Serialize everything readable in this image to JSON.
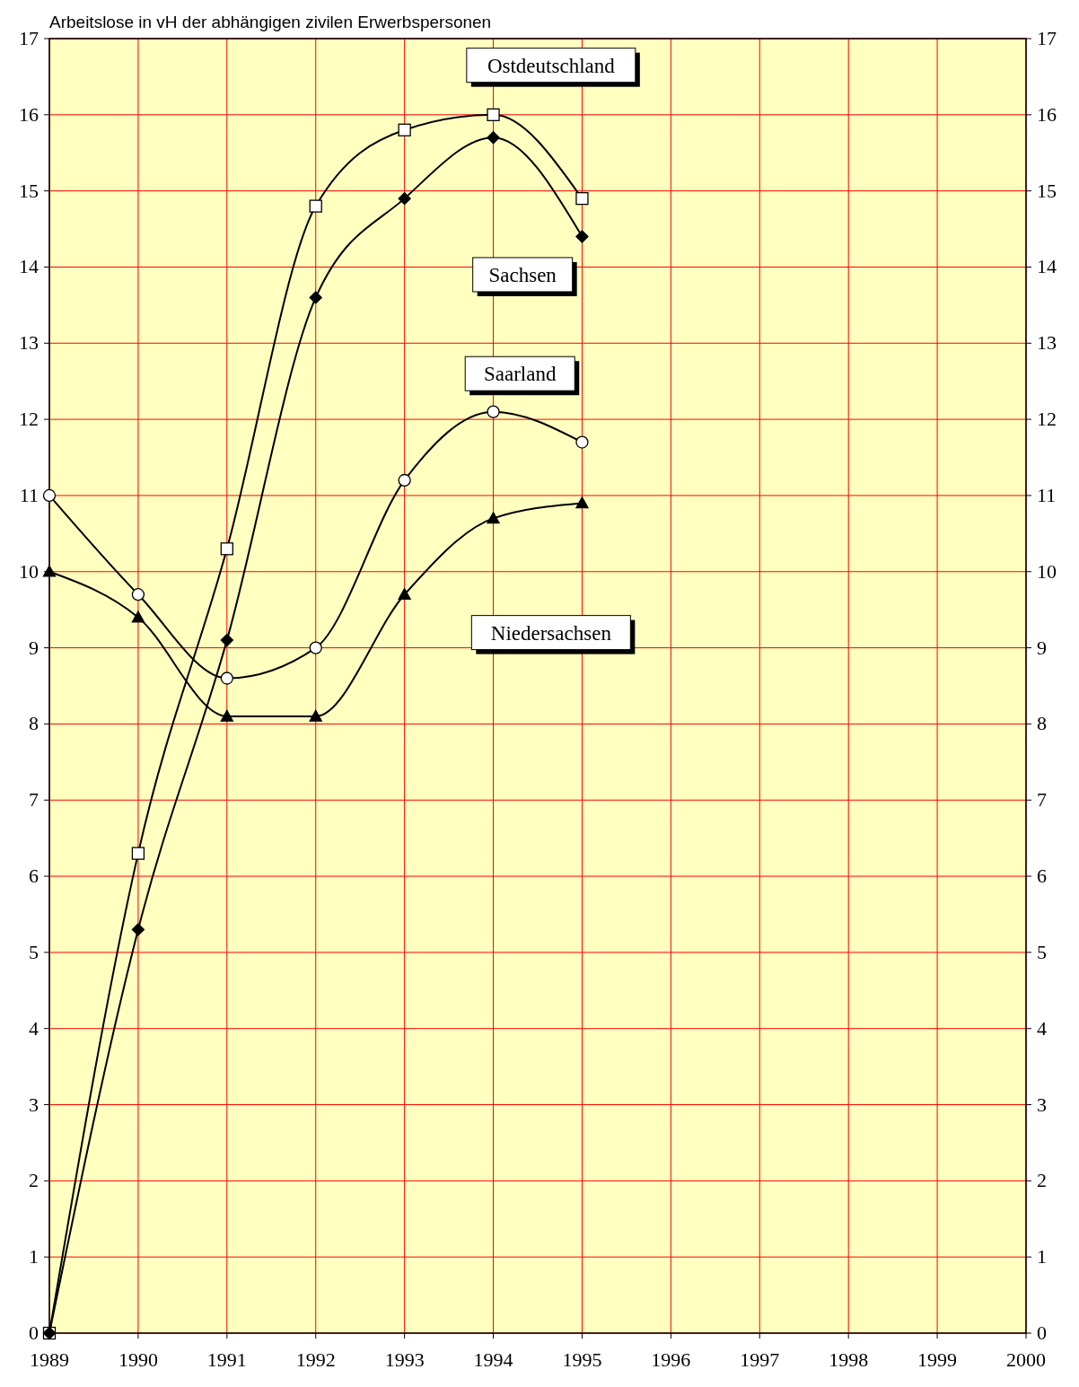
{
  "chart_data": {
    "type": "line",
    "title": "Arbeitslose in vH der abhängigen zivilen Erwerbspersonen",
    "x": [
      1989,
      1990,
      1991,
      1992,
      1993,
      1994,
      1995
    ],
    "series": [
      {
        "name": "Ostdeutschland",
        "color": "#000000",
        "marker": "square",
        "values": [
          0,
          6.3,
          10.3,
          14.8,
          15.8,
          16.0,
          14.9
        ]
      },
      {
        "name": "Sachsen",
        "color": "#000000",
        "marker": "diamond",
        "values": [
          0,
          5.3,
          9.1,
          13.6,
          14.9,
          15.7,
          14.4
        ]
      },
      {
        "name": "Saarland",
        "color": "#000000",
        "marker": "circle",
        "values": [
          11.0,
          9.7,
          8.6,
          9.0,
          11.2,
          12.1,
          11.7
        ]
      },
      {
        "name": "Niedersachsen",
        "color": "#000000",
        "marker": "triangle",
        "values": [
          10.0,
          9.4,
          8.1,
          8.1,
          9.7,
          10.7,
          10.9
        ]
      }
    ],
    "xlim": [
      1989,
      2000
    ],
    "xticks": [
      1989,
      1990,
      1991,
      1992,
      1993,
      1994,
      1995,
      1996,
      1997,
      1998,
      1999,
      2000
    ],
    "ylim": [
      0,
      17
    ],
    "yticks": [
      0,
      1,
      2,
      3,
      4,
      5,
      6,
      7,
      8,
      9,
      10,
      11,
      12,
      13,
      14,
      15,
      16,
      17
    ],
    "y2lim": [
      0,
      17
    ],
    "y2ticks": [
      0,
      1,
      2,
      3,
      4,
      5,
      6,
      7,
      8,
      9,
      10,
      11,
      12,
      13,
      14,
      15,
      16,
      17
    ],
    "grid": true
  }
}
